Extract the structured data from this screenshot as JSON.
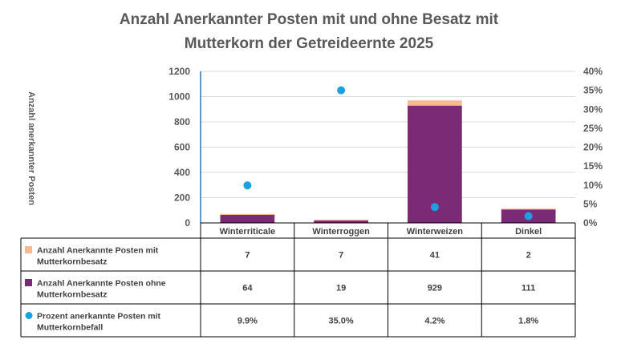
{
  "chart_data": {
    "type": "bar",
    "stacked": true,
    "title": "Anzahl Anerkannter Posten mit und ohne Besatz mit Mutterkorn der Getreideernte 2025",
    "title_lines": [
      "Anzahl Anerkannter Posten mit und ohne Besatz mit",
      "Mutterkorn der Getreideernte 2025"
    ],
    "ylabel": "Anzahl anerkannter Posten",
    "categories": [
      "Winterriticale",
      "Winterroggen",
      "Winterweizen",
      "Dinkel"
    ],
    "ylim": [
      0,
      1200
    ],
    "yticks": [
      0,
      200,
      400,
      600,
      800,
      1000,
      1200
    ],
    "y2lim": [
      0,
      0.4
    ],
    "y2ticks": [
      "0%",
      "5%",
      "10%",
      "15%",
      "20%",
      "25%",
      "30%",
      "35%",
      "40%"
    ],
    "series": [
      {
        "name": "Anzahl Anerkannte Posten mit Mutterkornbesatz",
        "axis": "primary",
        "kind": "bar",
        "color": "#F7B98F",
        "values": [
          7,
          7,
          41,
          2
        ],
        "labels": [
          "7",
          "7",
          "41",
          "2"
        ]
      },
      {
        "name": "Anzahl Anerkannte Posten ohne Mutterkornbesatz",
        "axis": "primary",
        "kind": "bar",
        "color": "#7B2A75",
        "values": [
          64,
          19,
          929,
          111
        ],
        "labels": [
          "64",
          "19",
          "929",
          "111"
        ]
      },
      {
        "name": "Prozent anerkannte Posten mit Mutterkornbefall",
        "axis": "secondary",
        "kind": "point",
        "color": "#1BA1E2",
        "values": [
          0.099,
          0.35,
          0.042,
          0.018
        ],
        "labels": [
          "9.9%",
          "35.0%",
          "4.2%",
          "1.8%"
        ]
      }
    ],
    "legend_lines": [
      [
        "Anzahl Anerkannte Posten mit",
        "Mutterkornbesatz"
      ],
      [
        "Anzahl Anerkannte Posten ohne",
        "Mutterkornbesatz"
      ],
      [
        "Prozent anerkannte Posten mit",
        "Mutterkornbefall"
      ]
    ]
  }
}
